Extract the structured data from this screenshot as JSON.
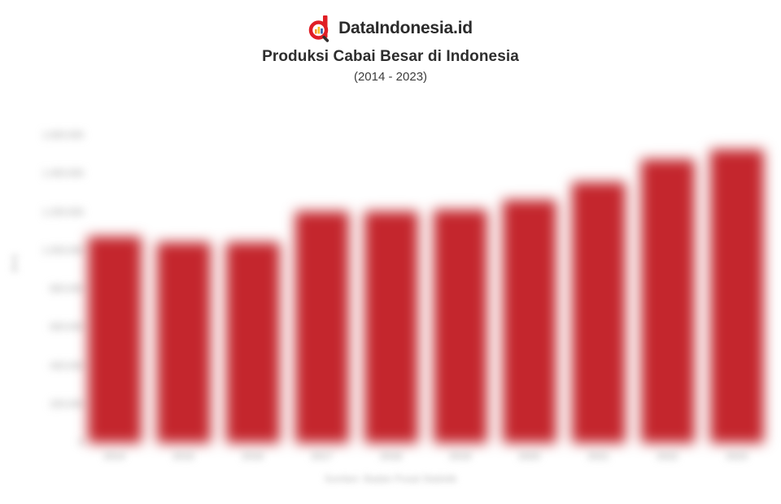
{
  "brand": {
    "name": "DataIndonesia.id",
    "logo_color": "#E01E25"
  },
  "header": {
    "title": "Produksi Cabai Besar di Indonesia",
    "subtitle": "(2014 - 2023)"
  },
  "chart_data": {
    "type": "bar",
    "title": "Produksi Cabai Besar di Indonesia",
    "subtitle": "(2014 - 2023)",
    "categories": [
      "2014",
      "2015",
      "2016",
      "2017",
      "2018",
      "2019",
      "2020",
      "2021",
      "2022",
      "2023"
    ],
    "values": [
      1075000,
      1045000,
      1046000,
      1206000,
      1207000,
      1214000,
      1264000,
      1360000,
      1476000,
      1530000
    ],
    "unit": "ton",
    "ylabel": "(ton)",
    "xlabel": "",
    "ylim": [
      0,
      1700000
    ],
    "yticks": [
      0,
      200000,
      400000,
      600000,
      800000,
      1000000,
      1200000,
      1400000,
      1600000
    ],
    "ytick_labels": [
      "0",
      "200.000",
      "400.000",
      "600.000",
      "800.000",
      "1.000.000",
      "1.200.000",
      "1.400.000",
      "1.600.000"
    ],
    "bar_color": "#C4262D",
    "grid": false,
    "legend": "none",
    "content_blurred": true
  },
  "footer": {
    "source": "Sumber: Badan Pusat Statistik"
  }
}
